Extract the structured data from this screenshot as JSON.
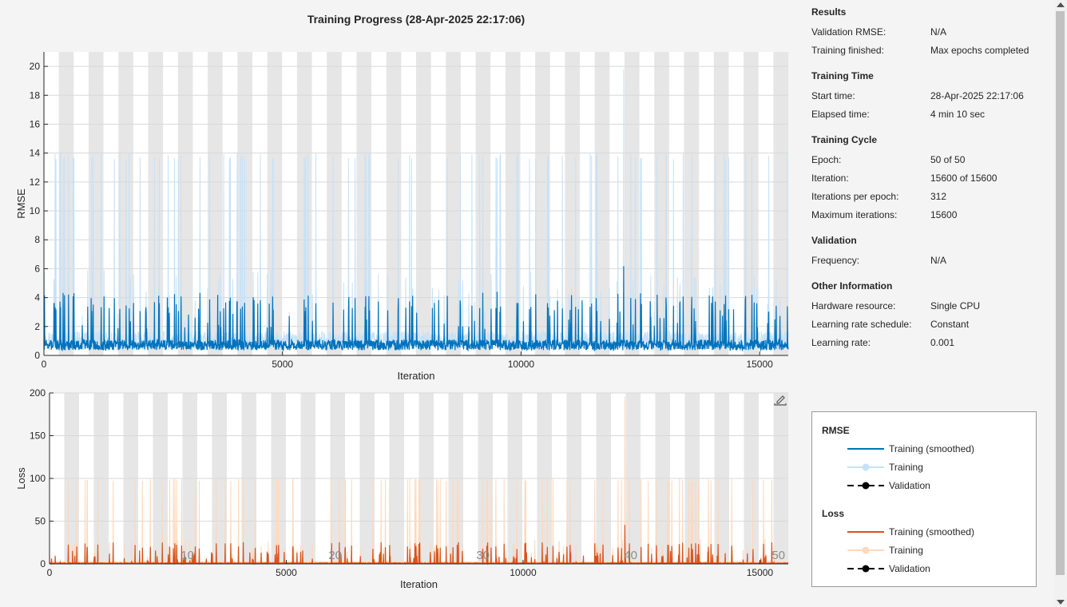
{
  "title": "Training Progress (28-Apr-2025 22:17:06)",
  "info": {
    "sections": [
      {
        "heading": "Results",
        "rows": [
          {
            "key": "Validation RMSE:",
            "value": "N/A"
          },
          {
            "key": "Training finished:",
            "value": "Max epochs completed"
          }
        ]
      },
      {
        "heading": "Training Time",
        "rows": [
          {
            "key": "Start time:",
            "value": "28-Apr-2025 22:17:06"
          },
          {
            "key": "Elapsed time:",
            "value": "4 min 10 sec"
          }
        ]
      },
      {
        "heading": "Training Cycle",
        "rows": [
          {
            "key": "Epoch:",
            "value": "50 of 50"
          },
          {
            "key": "Iteration:",
            "value": "15600 of 15600"
          },
          {
            "key": "Iterations per epoch:",
            "value": "312"
          },
          {
            "key": "Maximum iterations:",
            "value": "15600"
          }
        ]
      },
      {
        "heading": "Validation",
        "rows": [
          {
            "key": "Frequency:",
            "value": "N/A"
          }
        ]
      },
      {
        "heading": "Other Information",
        "rows": [
          {
            "key": "Hardware resource:",
            "value": "Single CPU"
          },
          {
            "key": "Learning rate schedule:",
            "value": "Constant"
          },
          {
            "key": "Learning rate:",
            "value": "0.001"
          }
        ]
      }
    ]
  },
  "legend": {
    "rmse_heading": "RMSE",
    "loss_heading": "Loss",
    "items": [
      "Training (smoothed)",
      "Training",
      "Validation"
    ]
  },
  "colors": {
    "rmse_smoothed": "#0072bd",
    "rmse_raw": "#c6e1f7",
    "loss_smoothed": "#d95319",
    "loss_raw": "#ffd8bc",
    "epoch_band": "#e6e6e6",
    "validation": "#000000"
  },
  "chart_data": [
    {
      "type": "line",
      "ylabel": "RMSE",
      "xlabel": "Iteration",
      "xlim": [
        0,
        15600
      ],
      "ylim": [
        0,
        21
      ],
      "x_ticks": [
        0,
        5000,
        10000,
        15000
      ],
      "y_ticks": [
        0,
        2,
        4,
        6,
        8,
        10,
        12,
        14,
        16,
        18,
        20
      ],
      "grid": true,
      "iterations_per_epoch": 312,
      "series": [
        {
          "name": "Training (smoothed)",
          "baseline": 0.9,
          "typical_peak": 4,
          "max": 6.5
        },
        {
          "name": "Training",
          "baseline": 1.2,
          "typical_peak": 14,
          "max": 19.8
        },
        {
          "name": "Validation",
          "values": []
        }
      ]
    },
    {
      "type": "line",
      "ylabel": "Loss",
      "xlabel": "Iteration",
      "xlim": [
        0,
        15600
      ],
      "ylim": [
        0,
        200
      ],
      "x_ticks": [
        0,
        5000,
        10000,
        15000
      ],
      "y_ticks": [
        0,
        50,
        100,
        150,
        200
      ],
      "grid": true,
      "iterations_per_epoch": 312,
      "epoch_labels": [
        "10",
        "20",
        "30",
        "40",
        "50"
      ],
      "series": [
        {
          "name": "Training (smoothed)",
          "baseline": 1,
          "typical_peak": 23,
          "max": 48
        },
        {
          "name": "Training",
          "baseline": 2,
          "typical_peak": 100,
          "max": 196
        },
        {
          "name": "Validation",
          "values": []
        }
      ]
    }
  ]
}
